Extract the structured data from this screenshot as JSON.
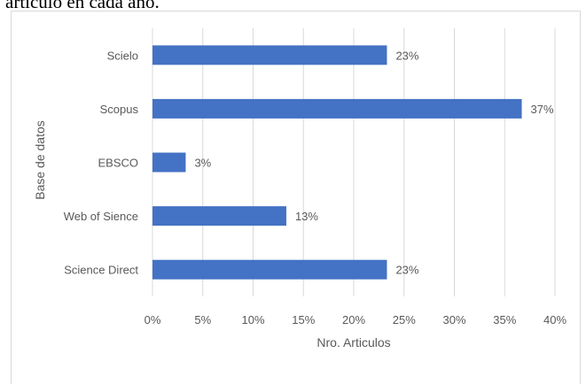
{
  "document": {
    "caption_fragment": "artículo en cada año."
  },
  "chart_data": {
    "type": "bar",
    "orientation": "horizontal",
    "categories": [
      "Scielo",
      "Scopus",
      "EBSCO",
      "Web of Sience",
      "Science Direct"
    ],
    "values": [
      23.3,
      36.7,
      3.3,
      13.3,
      23.3
    ],
    "data_labels": [
      "23%",
      "37%",
      "3%",
      "13%",
      "23%"
    ],
    "xlabel": "Nro. Articulos",
    "ylabel": "Base de datos",
    "xlim": [
      0,
      40
    ],
    "x_ticks": [
      "0%",
      "5%",
      "10%",
      "15%",
      "20%",
      "25%",
      "30%",
      "35%",
      "40%"
    ],
    "grid": true,
    "legend": "none",
    "colors": {
      "bar": "#4472c4",
      "grid": "#d9d9d9",
      "text": "#595959"
    }
  }
}
